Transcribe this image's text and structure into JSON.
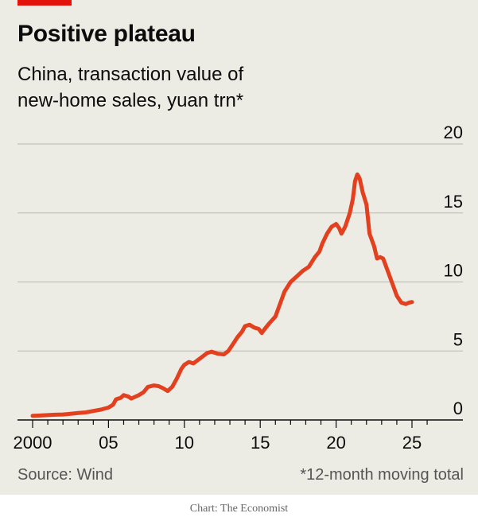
{
  "title": "Positive plateau",
  "subtitle_lines": [
    "China, transaction value of",
    "new-home sales, yuan trn*"
  ],
  "source": "Source: Wind",
  "footnote": "*12-month moving total",
  "credit": "Chart: The Economist",
  "colors": {
    "line": "#E3401F",
    "accent": "#E3120B",
    "background": "#ECEBE4",
    "grid": "#B9B9B3"
  },
  "chart_data": {
    "type": "line",
    "title": "Positive plateau",
    "subtitle": "China, transaction value of new-home sales, yuan trn*",
    "x_ticks": [
      "2000",
      "05",
      "10",
      "15",
      "20",
      "25"
    ],
    "x_tick_values": [
      2000,
      2005,
      2010,
      2015,
      2020,
      2025
    ],
    "y_ticks": [
      "0",
      "5",
      "10",
      "15",
      "20"
    ],
    "y_tick_values": [
      0,
      5,
      10,
      15,
      20
    ],
    "xlim": [
      1999.0,
      2027.2
    ],
    "ylim": [
      0,
      20
    ],
    "y_axis_side": "right",
    "grid": "horizontal",
    "series": [
      {
        "points": [
          [
            2000.0,
            0.3
          ],
          [
            2000.5,
            0.32
          ],
          [
            2001.0,
            0.35
          ],
          [
            2001.5,
            0.38
          ],
          [
            2002.0,
            0.4
          ],
          [
            2002.5,
            0.45
          ],
          [
            2003.0,
            0.5
          ],
          [
            2003.5,
            0.55
          ],
          [
            2004.0,
            0.65
          ],
          [
            2004.5,
            0.75
          ],
          [
            2005.0,
            0.9
          ],
          [
            2005.3,
            1.1
          ],
          [
            2005.5,
            1.5
          ],
          [
            2005.8,
            1.6
          ],
          [
            2006.0,
            1.8
          ],
          [
            2006.3,
            1.7
          ],
          [
            2006.5,
            1.55
          ],
          [
            2006.8,
            1.7
          ],
          [
            2007.0,
            1.8
          ],
          [
            2007.3,
            2.0
          ],
          [
            2007.6,
            2.4
          ],
          [
            2008.0,
            2.5
          ],
          [
            2008.3,
            2.45
          ],
          [
            2008.6,
            2.3
          ],
          [
            2008.9,
            2.1
          ],
          [
            2009.2,
            2.4
          ],
          [
            2009.5,
            3.0
          ],
          [
            2009.8,
            3.7
          ],
          [
            2010.0,
            4.0
          ],
          [
            2010.3,
            4.2
          ],
          [
            2010.6,
            4.1
          ],
          [
            2010.9,
            4.35
          ],
          [
            2011.2,
            4.6
          ],
          [
            2011.5,
            4.85
          ],
          [
            2011.8,
            4.95
          ],
          [
            2012.2,
            4.8
          ],
          [
            2012.6,
            4.75
          ],
          [
            2012.9,
            5.0
          ],
          [
            2013.2,
            5.5
          ],
          [
            2013.5,
            6.0
          ],
          [
            2013.8,
            6.4
          ],
          [
            2014.0,
            6.8
          ],
          [
            2014.3,
            6.9
          ],
          [
            2014.6,
            6.7
          ],
          [
            2014.9,
            6.6
          ],
          [
            2015.1,
            6.3
          ],
          [
            2015.3,
            6.6
          ],
          [
            2015.6,
            7.0
          ],
          [
            2016.0,
            7.5
          ],
          [
            2016.3,
            8.4
          ],
          [
            2016.6,
            9.3
          ],
          [
            2017.0,
            10.0
          ],
          [
            2017.4,
            10.4
          ],
          [
            2017.8,
            10.8
          ],
          [
            2018.2,
            11.1
          ],
          [
            2018.6,
            11.8
          ],
          [
            2018.9,
            12.2
          ],
          [
            2019.1,
            12.8
          ],
          [
            2019.4,
            13.5
          ],
          [
            2019.7,
            14.0
          ],
          [
            2020.0,
            14.2
          ],
          [
            2020.2,
            13.9
          ],
          [
            2020.35,
            13.5
          ],
          [
            2020.6,
            14.0
          ],
          [
            2020.9,
            15.0
          ],
          [
            2021.1,
            16.0
          ],
          [
            2021.25,
            17.3
          ],
          [
            2021.4,
            17.8
          ],
          [
            2021.55,
            17.5
          ],
          [
            2021.75,
            16.5
          ],
          [
            2022.0,
            15.6
          ],
          [
            2022.2,
            13.5
          ],
          [
            2022.5,
            12.6
          ],
          [
            2022.7,
            11.7
          ],
          [
            2022.9,
            11.8
          ],
          [
            2023.1,
            11.7
          ],
          [
            2023.4,
            10.8
          ],
          [
            2023.7,
            9.9
          ],
          [
            2024.0,
            9.0
          ],
          [
            2024.3,
            8.5
          ],
          [
            2024.6,
            8.4
          ],
          [
            2024.8,
            8.5
          ],
          [
            2025.0,
            8.55
          ]
        ]
      }
    ]
  }
}
